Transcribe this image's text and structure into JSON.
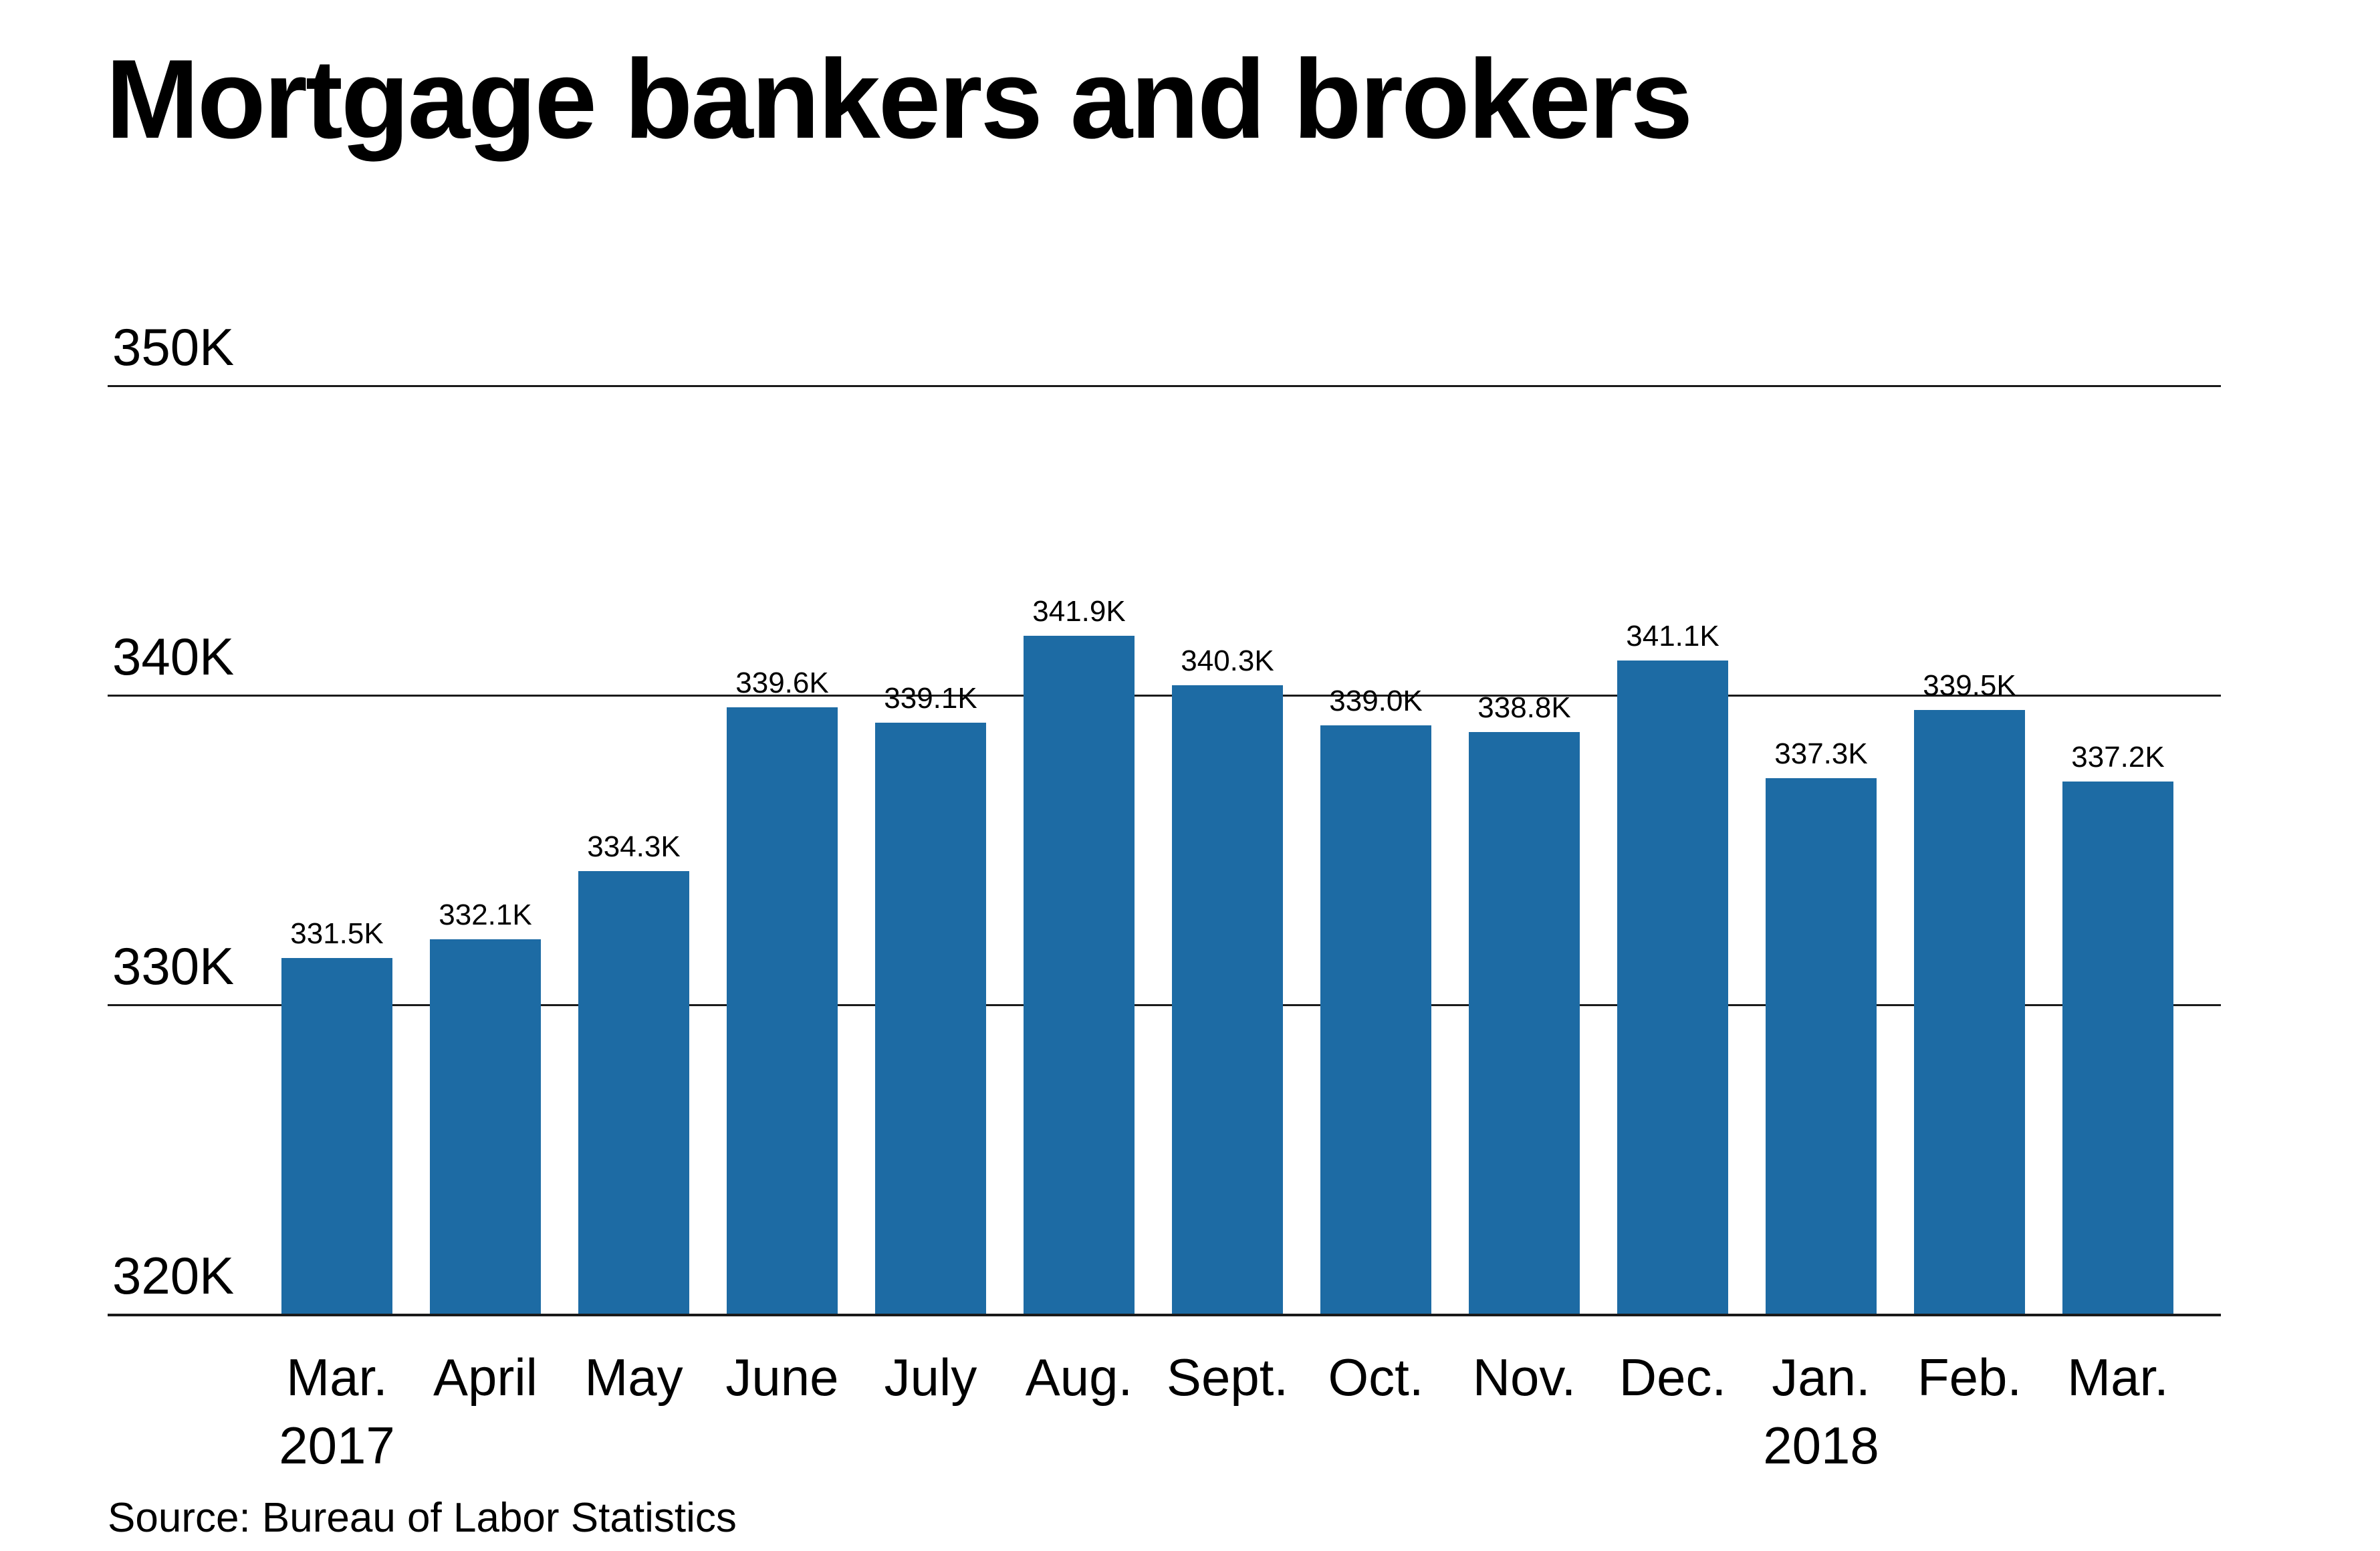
{
  "title": "Mortgage bankers and brokers",
  "source": "Source: Bureau of Labor Statistics",
  "colors": {
    "bar": "#1d6ba4",
    "gridline": "#1a1a1a",
    "text": "#000000",
    "background": "#ffffff"
  },
  "chart_data": {
    "type": "bar",
    "title": "Mortgage bankers and brokers",
    "xlabel": "",
    "ylabel": "",
    "ylim": [
      320,
      350
    ],
    "grid": "horizontal gridlines on, drawn behind bars",
    "legend": "none",
    "yticks": [
      {
        "value": 350,
        "label": "350K"
      },
      {
        "value": 340,
        "label": "340K"
      },
      {
        "value": 330,
        "label": "330K"
      },
      {
        "value": 320,
        "label": "320K"
      }
    ],
    "unit": "thousands of jobs",
    "categories": [
      {
        "label": "Mar.",
        "year": "2017"
      },
      {
        "label": "April",
        "year": ""
      },
      {
        "label": "May",
        "year": ""
      },
      {
        "label": "June",
        "year": ""
      },
      {
        "label": "July",
        "year": ""
      },
      {
        "label": "Aug.",
        "year": ""
      },
      {
        "label": "Sept.",
        "year": ""
      },
      {
        "label": "Oct.",
        "year": ""
      },
      {
        "label": "Nov.",
        "year": ""
      },
      {
        "label": "Dec.",
        "year": ""
      },
      {
        "label": "Jan.",
        "year": "2018"
      },
      {
        "label": "Feb.",
        "year": ""
      },
      {
        "label": "Mar.",
        "year": ""
      }
    ],
    "values": [
      331.5,
      332.1,
      334.3,
      339.6,
      339.1,
      341.9,
      340.3,
      339.0,
      338.8,
      341.1,
      337.3,
      339.5,
      337.2
    ],
    "value_labels": [
      "331.5K",
      "332.1K",
      "334.3K",
      "339.6K",
      "339.1K",
      "341.9K",
      "340.3K",
      "339.0K",
      "338.8K",
      "341.1K",
      "337.3K",
      "339.5K",
      "337.2K"
    ]
  }
}
